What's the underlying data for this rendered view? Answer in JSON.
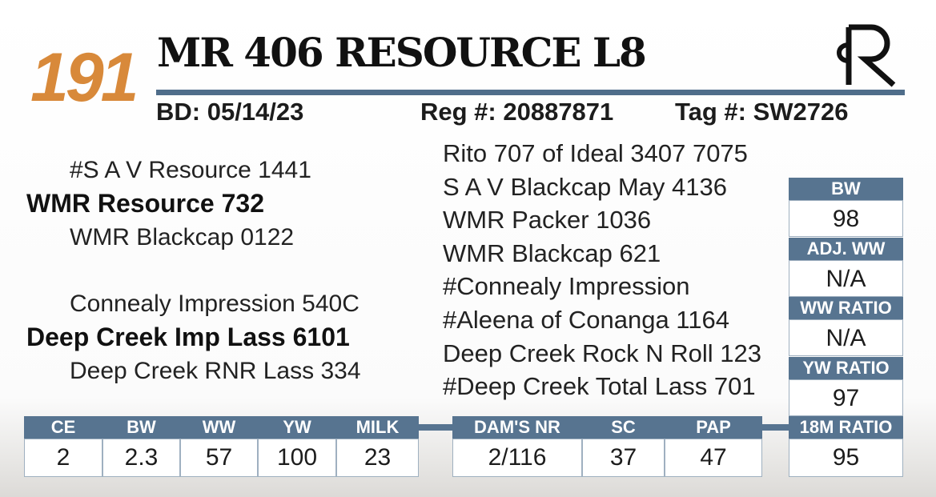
{
  "lot": "191",
  "name": "MR 406 RESOURCE L8",
  "info": {
    "birth_date": "BD: 05/14/23",
    "registration": "Reg #: 20887871",
    "tag": "Tag #: SW2726"
  },
  "pedigree": {
    "sire_sire": "#S A V Resource 1441",
    "sire": "WMR Resource 732",
    "sire_dam": "WMR Blackcap 0122",
    "dam_sire": "Connealy Impression 540C",
    "dam": "Deep Creek Imp Lass 6101",
    "dam_dam": "Deep Creek RNR Lass 334",
    "great_grandparents": [
      "Rito 707 of Ideal 3407 7075",
      "S A V Blackcap May 4136",
      "WMR Packer 1036",
      "WMR Blackcap 621",
      "#Connealy Impression",
      "#Aleena of Conanga 1164",
      "Deep Creek Rock N Roll 123",
      "#Deep Creek Total Lass 701"
    ]
  },
  "ratios": [
    {
      "label": "BW",
      "value": 98
    },
    {
      "label": "ADJ. WW",
      "value": "N/A"
    },
    {
      "label": "WW RATIO",
      "value": "N/A"
    },
    {
      "label": "YW RATIO",
      "value": 97
    },
    {
      "label": "18M RATIO",
      "value": 95
    }
  ],
  "epds": [
    {
      "label": "CE",
      "value": 2
    },
    {
      "label": "BW",
      "value": 2.3
    },
    {
      "label": "WW",
      "value": 57
    },
    {
      "label": "YW",
      "value": 100
    },
    {
      "label": "MILK",
      "value": 23
    }
  ],
  "dam_epds": [
    {
      "label": "DAM'S NR",
      "value": "2/116"
    },
    {
      "label": "SC",
      "value": 37
    },
    {
      "label": "PAP",
      "value": 47
    }
  ]
}
